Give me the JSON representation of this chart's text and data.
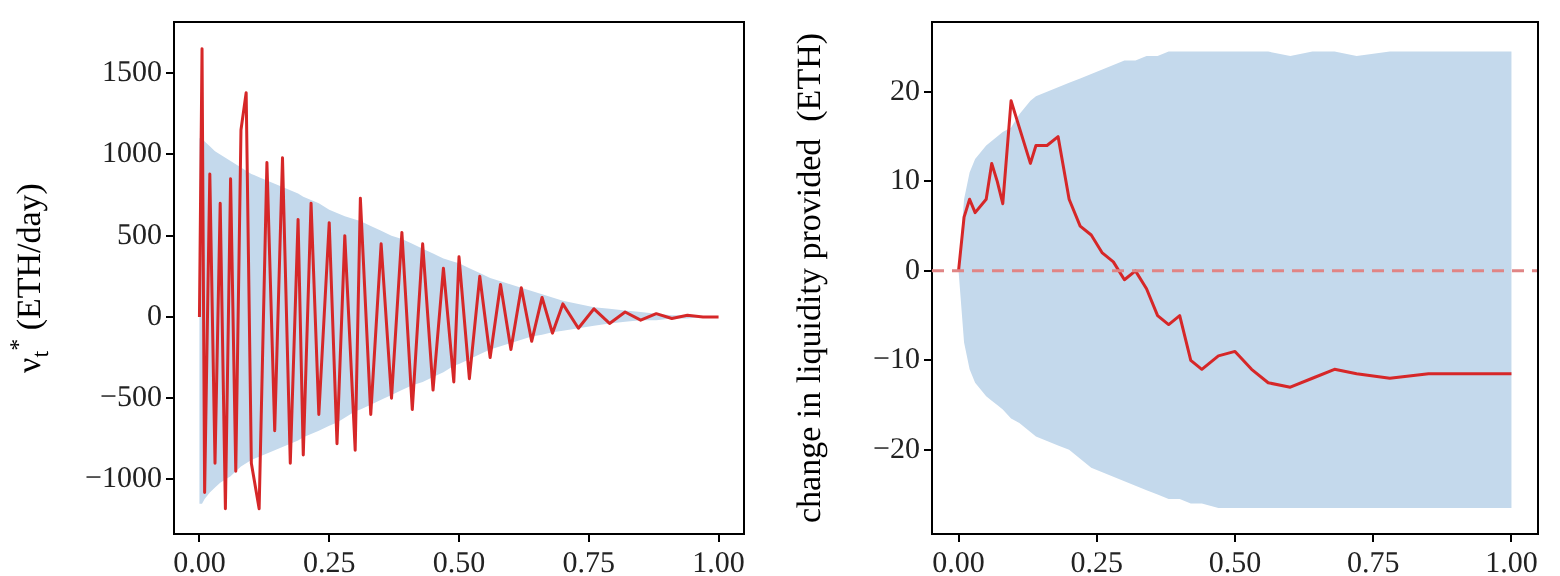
{
  "chart_data": [
    {
      "type": "line",
      "ylabel": "ν$_{t}$$^{*}$ (ETH/day)",
      "grid": false,
      "legend": false,
      "xlim": [
        -0.049,
        1.049
      ],
      "ylim": [
        -1336,
        1815
      ],
      "xticks": [
        {
          "value": 0,
          "label": "0.00"
        },
        {
          "value": 0.25,
          "label": "0.25"
        },
        {
          "value": 0.5,
          "label": "0.50"
        },
        {
          "value": 0.75,
          "label": "0.75"
        },
        {
          "value": 1,
          "label": "1.00"
        }
      ],
      "yticks": [
        {
          "value": -1000,
          "label": "−1000"
        },
        {
          "value": -500,
          "label": "−500"
        },
        0,
        500,
        1000,
        1500
      ],
      "series": [
        {
          "color": "#d62728",
          "x": [
            0,
            0.005,
            0.01,
            0.02,
            0.03,
            0.04,
            0.05,
            0.06,
            0.07,
            0.08,
            0.09,
            0.1,
            0.115,
            0.13,
            0.145,
            0.16,
            0.175,
            0.19,
            0.2,
            0.215,
            0.23,
            0.25,
            0.265,
            0.28,
            0.3,
            0.31,
            0.33,
            0.35,
            0.37,
            0.39,
            0.41,
            0.43,
            0.45,
            0.47,
            0.49,
            0.5,
            0.52,
            0.54,
            0.56,
            0.58,
            0.6,
            0.62,
            0.64,
            0.66,
            0.68,
            0.7,
            0.73,
            0.76,
            0.79,
            0.82,
            0.85,
            0.88,
            0.91,
            0.94,
            0.97,
            1
          ],
          "values": [
            0,
            1650,
            -1080,
            880,
            -900,
            700,
            -1180,
            850,
            -950,
            1150,
            1380,
            -900,
            -1180,
            950,
            -700,
            980,
            -900,
            600,
            -850,
            700,
            -600,
            580,
            -780,
            500,
            -820,
            730,
            -600,
            450,
            -500,
            520,
            -570,
            450,
            -450,
            300,
            -400,
            370,
            -380,
            250,
            -250,
            200,
            -200,
            180,
            -150,
            120,
            -100,
            80,
            -70,
            50,
            -40,
            30,
            -20,
            20,
            -10,
            10,
            0,
            0
          ],
          "upper": [
            1100,
            1100,
            1080,
            1050,
            1020,
            1000,
            980,
            960,
            940,
            920,
            900,
            880,
            860,
            840,
            820,
            800,
            780,
            760,
            740,
            720,
            700,
            660,
            640,
            620,
            600,
            590,
            560,
            530,
            500,
            480,
            450,
            420,
            390,
            360,
            340,
            330,
            300,
            270,
            240,
            220,
            200,
            180,
            160,
            140,
            120,
            100,
            80,
            60,
            50,
            40,
            30,
            20,
            10,
            10,
            0,
            0
          ],
          "lower": [
            -1150,
            -1150,
            -1120,
            -1080,
            -1050,
            -1020,
            -1000,
            -980,
            -950,
            -920,
            -900,
            -880,
            -860,
            -840,
            -820,
            -800,
            -780,
            -760,
            -740,
            -720,
            -700,
            -670,
            -650,
            -620,
            -580,
            -570,
            -540,
            -510,
            -480,
            -450,
            -420,
            -400,
            -370,
            -340,
            -300,
            -290,
            -260,
            -230,
            -200,
            -180,
            -160,
            -140,
            -120,
            -110,
            -95,
            -85,
            -70,
            -55,
            -40,
            -30,
            -20,
            -20,
            -10,
            -10,
            0,
            0
          ]
        }
      ]
    },
    {
      "type": "line",
      "ylabel": "change in liquidity provided  (ETH)",
      "grid": false,
      "legend": false,
      "xlim": [
        -0.048,
        1.048
      ],
      "ylim": [
        -29.4,
        27.8
      ],
      "xticks": [
        {
          "value": 0,
          "label": "0.00"
        },
        {
          "value": 0.25,
          "label": "0.25"
        },
        {
          "value": 0.5,
          "label": "0.50"
        },
        {
          "value": 0.75,
          "label": "0.75"
        },
        {
          "value": 1,
          "label": "1.00"
        }
      ],
      "yticks": [
        {
          "value": -20,
          "label": "−20"
        },
        {
          "value": -10,
          "label": "−10"
        },
        0,
        10,
        20
      ],
      "ref_lines": [
        {
          "axis": "y",
          "value": 0,
          "color": "#e08585",
          "line_style": "dashed"
        }
      ],
      "series": [
        {
          "color": "#d62728",
          "x": [
            0,
            0.01,
            0.02,
            0.03,
            0.05,
            0.06,
            0.07,
            0.08,
            0.095,
            0.11,
            0.13,
            0.14,
            0.16,
            0.18,
            0.2,
            0.22,
            0.24,
            0.26,
            0.28,
            0.3,
            0.32,
            0.34,
            0.36,
            0.38,
            0.4,
            0.42,
            0.44,
            0.47,
            0.5,
            0.53,
            0.56,
            0.6,
            0.64,
            0.68,
            0.72,
            0.78,
            0.85,
            1
          ],
          "values": [
            0,
            6,
            8,
            6.5,
            8,
            12,
            10,
            7.5,
            19,
            16,
            12,
            14,
            14,
            15,
            8,
            5,
            4,
            2,
            1,
            -1,
            0,
            -2,
            -5,
            -6,
            -5,
            -10,
            -11,
            -9.5,
            -9,
            -11,
            -12.5,
            -13,
            -12,
            -11,
            -11.5,
            -12,
            -11.5,
            -11.5
          ],
          "upper": [
            0,
            8,
            11,
            12.5,
            14,
            14.5,
            15,
            15.5,
            16,
            17.5,
            19,
            19.5,
            20,
            20.5,
            21,
            21.5,
            22,
            22.5,
            23,
            23.5,
            23.5,
            24,
            24,
            24.5,
            24.5,
            24.5,
            24.5,
            24.5,
            24.5,
            24.5,
            24.5,
            24,
            24.5,
            24.5,
            24,
            24.5,
            24.5,
            24.5
          ],
          "lower": [
            0,
            -8,
            -11,
            -12.5,
            -14,
            -14.5,
            -15,
            -15.5,
            -16.5,
            -17,
            -18,
            -18.5,
            -19,
            -19.5,
            -20,
            -21,
            -22,
            -22.5,
            -23,
            -23.5,
            -24,
            -24.5,
            -25,
            -25.5,
            -25.5,
            -26,
            -26,
            -26.5,
            -26.5,
            -26.5,
            -26.5,
            -26.5,
            -26.5,
            -26.5,
            -26.5,
            -26.5,
            -26.5,
            -26.5
          ]
        }
      ]
    }
  ]
}
